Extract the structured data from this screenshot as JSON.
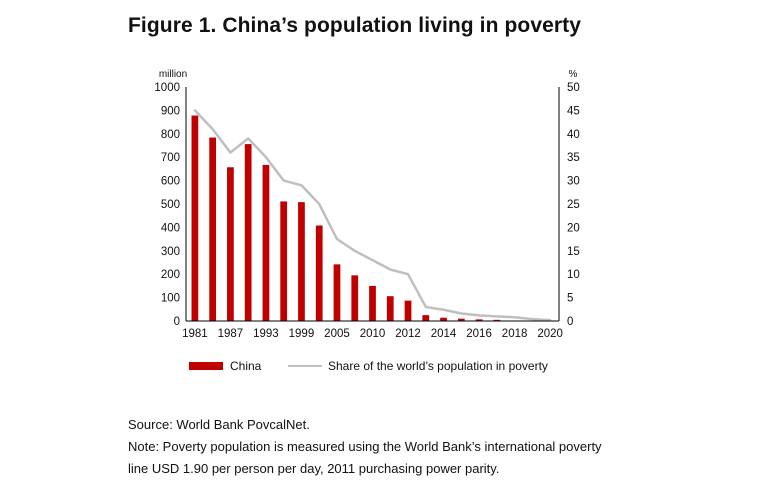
{
  "figure_title": "Figure 1. China’s population living in poverty",
  "source_line": "Source: World Bank PovcalNet.",
  "note_line1": "Note: Poverty population is measured using the World Bank’s international poverty",
  "note_line2": "line USD 1.90 per person per day, 2011 purchasing power parity.",
  "colors": {
    "bar": "#c00000",
    "line": "#bfbfbf",
    "axis": "#000000"
  },
  "chart_data": {
    "type": "bar",
    "y_left_unit": "million",
    "y_right_unit": "%",
    "y_left_range": [
      0,
      1000
    ],
    "y_right_range": [
      0,
      50
    ],
    "y_left_ticks": [
      "0",
      "100",
      "200",
      "300",
      "400",
      "500",
      "600",
      "700",
      "800",
      "900",
      "1000"
    ],
    "y_right_ticks": [
      "0",
      "5",
      "10",
      "15",
      "20",
      "25",
      "30",
      "35",
      "40",
      "45",
      "50"
    ],
    "x_tick_labels": [
      "1981",
      "1987",
      "1993",
      "1999",
      "2005",
      "2010",
      "2012",
      "2014",
      "2016",
      "2018",
      "2020"
    ],
    "categories": [
      "1981",
      "1984",
      "1987",
      "1990",
      "1993",
      "1996",
      "1999",
      "2002",
      "2005",
      "2008",
      "2010",
      "2011",
      "2012",
      "2013",
      "2014",
      "2015",
      "2016",
      "2017",
      "2018",
      "2019",
      "2020"
    ],
    "series": [
      {
        "name": "China",
        "type": "bar",
        "axis": "left",
        "values": [
          878,
          784,
          657,
          756,
          667,
          511,
          508,
          408,
          242,
          195,
          150,
          106,
          87,
          25,
          14,
          10,
          7,
          5,
          2,
          1,
          0
        ]
      },
      {
        "name": "Share of the world’s population in poverty",
        "type": "line",
        "axis": "right",
        "values": [
          45,
          41,
          36,
          39,
          35,
          30,
          29,
          25,
          17.5,
          15,
          13,
          11,
          10,
          3,
          2.4,
          1.6,
          1.2,
          1,
          0.8,
          0.4,
          0.2
        ]
      }
    ],
    "legend_position": "bottom",
    "grid": false
  }
}
